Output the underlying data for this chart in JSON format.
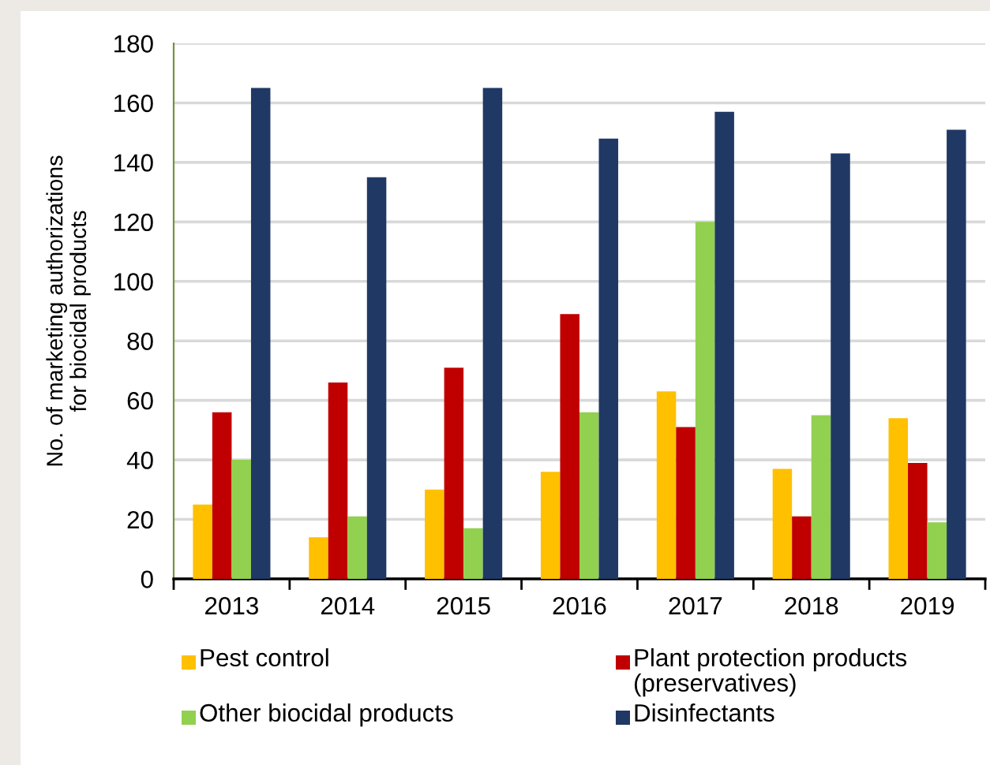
{
  "chart_data": {
    "type": "bar",
    "categories": [
      "2013",
      "2014",
      "2015",
      "2016",
      "2017",
      "2018",
      "2019"
    ],
    "series": [
      {
        "name": "Pest control",
        "color": "#ffc000",
        "values": [
          25,
          14,
          30,
          36,
          63,
          37,
          54
        ]
      },
      {
        "name": "Plant protection products\n(preservatives)",
        "color": "#c00000",
        "values": [
          56,
          66,
          71,
          89,
          51,
          21,
          39
        ]
      },
      {
        "name": "Other biocidal products",
        "color": "#92d050",
        "values": [
          40,
          21,
          17,
          56,
          120,
          55,
          19
        ]
      },
      {
        "name": "Disinfectants",
        "color": "#203864",
        "values": [
          165,
          135,
          165,
          148,
          157,
          143,
          151
        ]
      }
    ],
    "ylabel": "No. of marketing authorizations\nfor biocidal products",
    "ylim": [
      0,
      180
    ],
    "yticks": [
      0,
      20,
      40,
      60,
      80,
      100,
      120,
      140,
      160,
      180
    ],
    "grid": "y",
    "legend": "bottom"
  }
}
